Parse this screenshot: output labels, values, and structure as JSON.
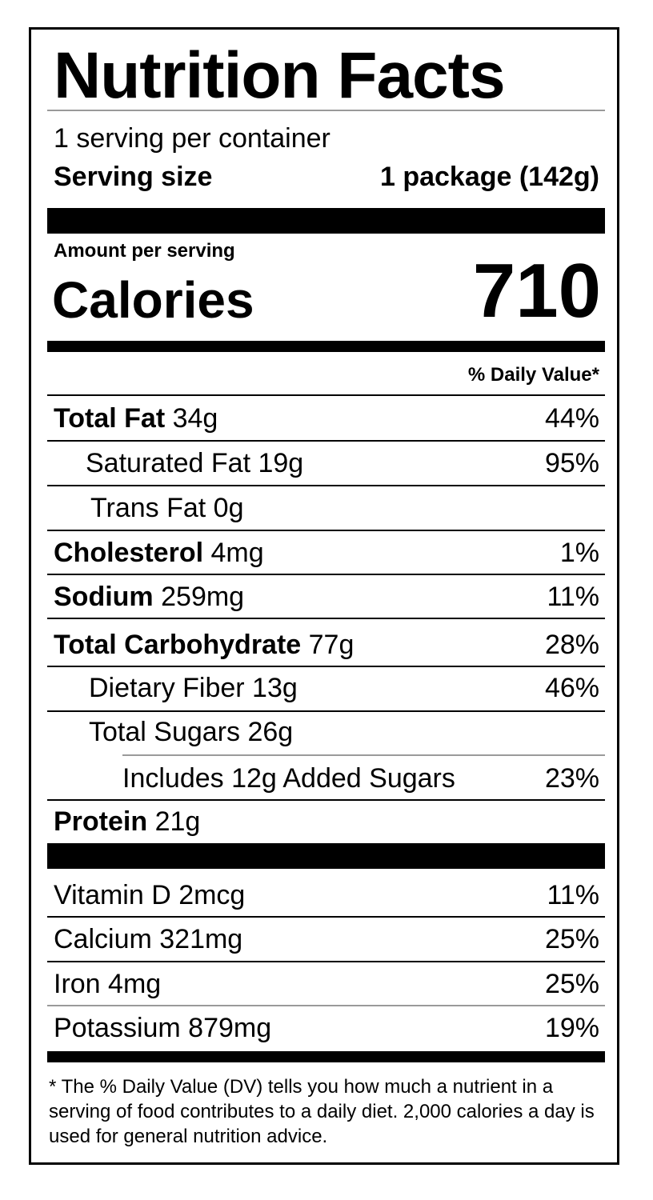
{
  "label": {
    "title": "Nutrition Facts",
    "servings_per_container": "1 serving per container",
    "serving_size_label": "Serving size",
    "serving_size_value": "1 package (142g)",
    "amount_per_serving": "Amount per serving",
    "calories_label": "Calories",
    "calories_value": "710",
    "daily_value_header": "% Daily Value*"
  },
  "nutrients": [
    {
      "name": "Total Fat",
      "amount": "34g",
      "dv": "44%"
    },
    {
      "name": "Saturated Fat 19g",
      "amount": "",
      "dv": "95%"
    },
    {
      "name": "Trans Fat 0g",
      "amount": "",
      "dv": ""
    },
    {
      "name": "Cholesterol",
      "amount": "4mg",
      "dv": "1%"
    },
    {
      "name": "Sodium",
      "amount": "259mg",
      "dv": "11%"
    },
    {
      "name": "Total Carbohydrate",
      "amount": "77g",
      "dv": "28%"
    },
    {
      "name": "Dietary Fiber 13g",
      "amount": "",
      "dv": "46%"
    },
    {
      "name": "Total Sugars 26g",
      "amount": "",
      "dv": ""
    },
    {
      "name": "Includes 12g Added Sugars",
      "amount": "",
      "dv": "23%"
    },
    {
      "name": "Protein",
      "amount": "21g",
      "dv": ""
    }
  ],
  "vitamins": [
    {
      "name": "Vitamin D 2mcg",
      "dv": "11%"
    },
    {
      "name": "Calcium 321mg",
      "dv": "25%"
    },
    {
      "name": "Iron 4mg",
      "dv": "25%"
    },
    {
      "name": "Potassium 879mg",
      "dv": "19%"
    }
  ],
  "footnote": "* The % Daily Value (DV) tells you how much a nutrient in a serving of food contributes to a daily diet. 2,000 calories a  day is used for general nutrition advice."
}
